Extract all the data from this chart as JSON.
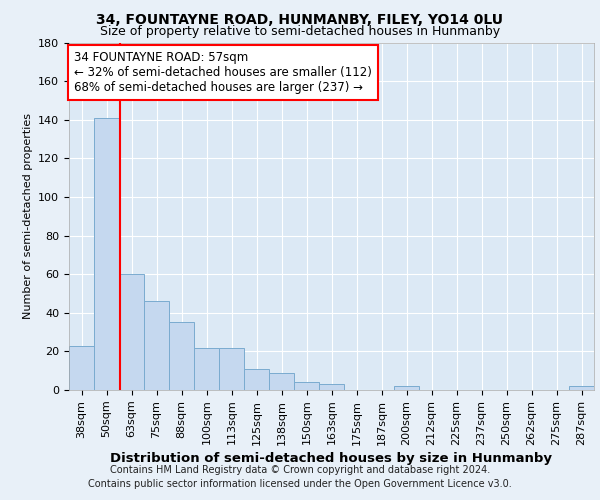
{
  "title": "34, FOUNTAYNE ROAD, HUNMANBY, FILEY, YO14 0LU",
  "subtitle": "Size of property relative to semi-detached houses in Hunmanby",
  "xlabel": "Distribution of semi-detached houses by size in Hunmanby",
  "ylabel": "Number of semi-detached properties",
  "footnote1": "Contains HM Land Registry data © Crown copyright and database right 2024.",
  "footnote2": "Contains public sector information licensed under the Open Government Licence v3.0.",
  "bar_labels": [
    "38sqm",
    "50sqm",
    "63sqm",
    "75sqm",
    "88sqm",
    "100sqm",
    "113sqm",
    "125sqm",
    "138sqm",
    "150sqm",
    "163sqm",
    "175sqm",
    "187sqm",
    "200sqm",
    "212sqm",
    "225sqm",
    "237sqm",
    "250sqm",
    "262sqm",
    "275sqm",
    "287sqm"
  ],
  "bar_values": [
    23,
    141,
    60,
    46,
    35,
    22,
    22,
    11,
    9,
    4,
    3,
    0,
    0,
    2,
    0,
    0,
    0,
    0,
    0,
    0,
    2
  ],
  "bar_color": "#c5d8ef",
  "bar_edgecolor": "#7aabcf",
  "background_color": "#e8f0f8",
  "plot_background": "#dce9f5",
  "grid_color": "white",
  "vline_x": 1.54,
  "vline_color": "red",
  "annotation_line1": "34 FOUNTAYNE ROAD: 57sqm",
  "annotation_line2": "← 32% of semi-detached houses are smaller (112)",
  "annotation_line3": "68% of semi-detached houses are larger (237) →",
  "annotation_box_color": "white",
  "annotation_box_edgecolor": "red",
  "ylim": [
    0,
    180
  ],
  "yticks": [
    0,
    20,
    40,
    60,
    80,
    100,
    120,
    140,
    160,
    180
  ],
  "title_fontsize": 10,
  "subtitle_fontsize": 9,
  "xlabel_fontsize": 9.5,
  "ylabel_fontsize": 8,
  "tick_fontsize": 8,
  "annotation_fontsize": 8.5,
  "footnote_fontsize": 7
}
